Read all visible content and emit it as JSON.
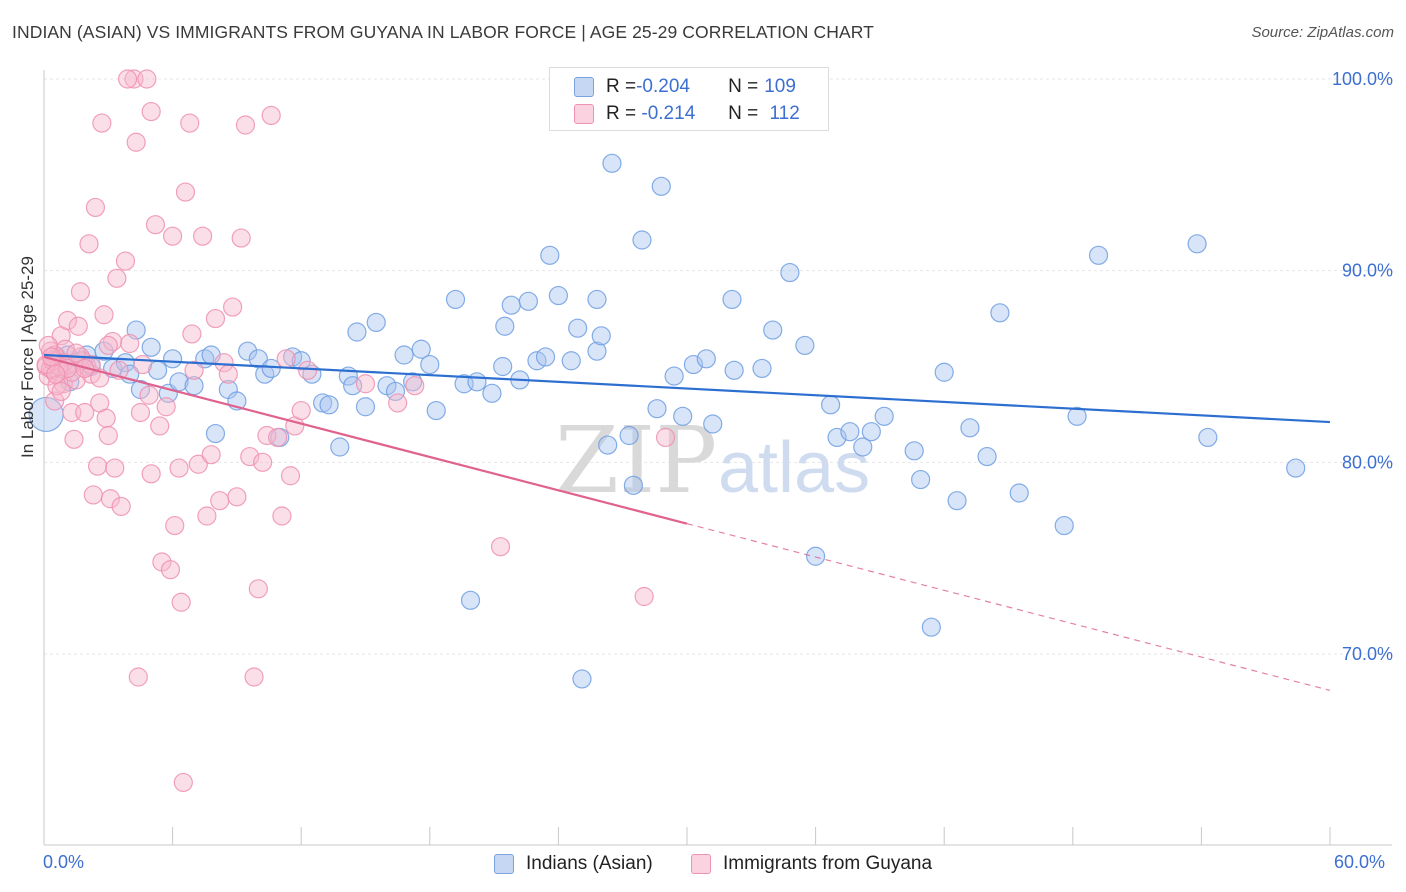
{
  "header": {
    "title": "INDIAN (ASIAN) VS IMMIGRANTS FROM GUYANA IN LABOR FORCE | AGE 25-29 CORRELATION CHART",
    "source": "Source: ZipAtlas.com"
  },
  "watermark": {
    "zip": "ZIP",
    "atlas": "atlas"
  },
  "legend": {
    "rows": [
      {
        "r_label": "R = ",
        "r_value": "-0.204",
        "n_label": "N = ",
        "n_value": "109",
        "color": "#a8c4ef",
        "border": "#7aa3e0"
      },
      {
        "r_label": "R = ",
        "r_value": " -0.214",
        "n_label": "N = ",
        "n_value": " 112",
        "color": "#f7b9cc",
        "border": "#ee93b2"
      }
    ]
  },
  "chart_data": {
    "type": "scatter",
    "title": "INDIAN (ASIAN) VS IMMIGRANTS FROM GUYANA IN LABOR FORCE | AGE 25-29 CORRELATION CHART",
    "xlabel": "",
    "ylabel": "In Labor Force | Age 25-29",
    "xlim": [
      0,
      60
    ],
    "ylim": [
      62,
      101
    ],
    "x_tick_labels": [
      "0.0%",
      "60.0%"
    ],
    "y_ticks": [
      70,
      80,
      90,
      100
    ],
    "y_tick_labels": [
      "70.0%",
      "80.0%",
      "90.0%",
      "100.0%"
    ],
    "grid": true,
    "legend_placement": "bottom",
    "series": [
      {
        "name": "Indians (Asian)",
        "color": "#6f9fe2",
        "fill": "#a8c4ef",
        "trend": {
          "x0": 0,
          "y0": 85.6,
          "x1": 60,
          "y1": 82.1,
          "style": "solid",
          "line_color": "#2c6fd0"
        },
        "points": [
          [
            0.1,
            82.5
          ],
          [
            0.6,
            85.5
          ],
          [
            0.8,
            85.0
          ],
          [
            1.1,
            85.6
          ],
          [
            1.4,
            85.2
          ],
          [
            1.7,
            85.3
          ],
          [
            2.0,
            85.6
          ],
          [
            2.2,
            85.0
          ],
          [
            2.8,
            85.8
          ],
          [
            3.2,
            84.9
          ],
          [
            3.8,
            85.2
          ],
          [
            4.0,
            84.6
          ],
          [
            4.3,
            86.9
          ],
          [
            4.5,
            83.8
          ],
          [
            5.0,
            86.0
          ],
          [
            5.3,
            84.8
          ],
          [
            5.8,
            83.6
          ],
          [
            6.0,
            85.4
          ],
          [
            6.3,
            84.2
          ],
          [
            7.0,
            84.0
          ],
          [
            7.5,
            85.4
          ],
          [
            7.8,
            85.6
          ],
          [
            8.0,
            81.5
          ],
          [
            8.6,
            83.8
          ],
          [
            9.5,
            85.8
          ],
          [
            10.0,
            85.4
          ],
          [
            10.3,
            84.6
          ],
          [
            10.6,
            84.9
          ],
          [
            11.0,
            81.3
          ],
          [
            11.6,
            85.5
          ],
          [
            12.0,
            85.3
          ],
          [
            12.5,
            84.6
          ],
          [
            13.0,
            83.1
          ],
          [
            13.3,
            83.0
          ],
          [
            13.8,
            80.8
          ],
          [
            14.2,
            84.5
          ],
          [
            14.4,
            84.0
          ],
          [
            14.6,
            86.8
          ],
          [
            15.0,
            82.9
          ],
          [
            15.5,
            87.3
          ],
          [
            16.0,
            84.0
          ],
          [
            16.4,
            83.7
          ],
          [
            16.8,
            85.6
          ],
          [
            17.2,
            84.2
          ],
          [
            17.6,
            85.9
          ],
          [
            18.0,
            85.1
          ],
          [
            18.3,
            82.7
          ],
          [
            19.2,
            88.5
          ],
          [
            19.6,
            84.1
          ],
          [
            19.9,
            72.8
          ],
          [
            20.2,
            84.2
          ],
          [
            20.9,
            83.6
          ],
          [
            21.4,
            85.0
          ],
          [
            21.5,
            87.1
          ],
          [
            21.8,
            88.2
          ],
          [
            22.2,
            84.3
          ],
          [
            22.6,
            88.4
          ],
          [
            23.0,
            85.3
          ],
          [
            23.4,
            85.5
          ],
          [
            23.6,
            90.8
          ],
          [
            24.0,
            88.7
          ],
          [
            24.6,
            85.3
          ],
          [
            24.9,
            87.0
          ],
          [
            25.1,
            68.7
          ],
          [
            25.8,
            88.5
          ],
          [
            25.8,
            85.8
          ],
          [
            26.0,
            86.6
          ],
          [
            26.3,
            80.9
          ],
          [
            26.5,
            95.6
          ],
          [
            27.3,
            81.4
          ],
          [
            27.5,
            78.8
          ],
          [
            27.9,
            91.6
          ],
          [
            28.6,
            82.8
          ],
          [
            28.8,
            94.4
          ],
          [
            29.4,
            84.5
          ],
          [
            29.8,
            82.4
          ],
          [
            30.3,
            85.1
          ],
          [
            30.9,
            85.4
          ],
          [
            31.2,
            82.0
          ],
          [
            32.1,
            88.5
          ],
          [
            32.2,
            84.8
          ],
          [
            33.5,
            84.9
          ],
          [
            34.0,
            86.9
          ],
          [
            34.8,
            89.9
          ],
          [
            35.5,
            86.1
          ],
          [
            36.0,
            75.1
          ],
          [
            36.7,
            83.0
          ],
          [
            37.0,
            81.3
          ],
          [
            37.6,
            81.6
          ],
          [
            38.2,
            80.8
          ],
          [
            38.6,
            81.6
          ],
          [
            39.2,
            82.4
          ],
          [
            40.6,
            80.6
          ],
          [
            40.9,
            79.1
          ],
          [
            41.4,
            71.4
          ],
          [
            42.0,
            84.7
          ],
          [
            42.6,
            78.0
          ],
          [
            43.2,
            81.8
          ],
          [
            44.0,
            80.3
          ],
          [
            44.6,
            87.8
          ],
          [
            45.5,
            78.4
          ],
          [
            47.6,
            76.7
          ],
          [
            48.2,
            82.4
          ],
          [
            49.2,
            90.8
          ],
          [
            53.8,
            91.4
          ],
          [
            54.3,
            81.3
          ],
          [
            58.4,
            79.7
          ],
          [
            1.2,
            84.2
          ],
          [
            9.0,
            83.2
          ]
        ]
      },
      {
        "name": "Immigrants from Guyana",
        "color": "#ee8fb0",
        "fill": "#f7b9cc",
        "trend": {
          "x0": 0,
          "y0": 85.5,
          "x1": 30,
          "y1": 76.8,
          "style": "solid",
          "line_color": "#e0628e",
          "extension": {
            "x1": 60,
            "y1": 68.1,
            "style": "dashed"
          }
        },
        "points": [
          [
            0.1,
            85.0
          ],
          [
            0.2,
            84.5
          ],
          [
            0.3,
            85.8
          ],
          [
            0.4,
            84.8
          ],
          [
            0.5,
            83.2
          ],
          [
            0.6,
            85.4
          ],
          [
            0.7,
            84.7
          ],
          [
            0.8,
            86.6
          ],
          [
            0.9,
            84.1
          ],
          [
            1.0,
            85.9
          ],
          [
            1.1,
            87.4
          ],
          [
            1.2,
            85.1
          ],
          [
            1.3,
            82.6
          ],
          [
            1.4,
            81.2
          ],
          [
            1.5,
            84.3
          ],
          [
            1.6,
            87.1
          ],
          [
            1.7,
            88.9
          ],
          [
            1.8,
            85.3
          ],
          [
            1.9,
            82.6
          ],
          [
            2.0,
            85.0
          ],
          [
            2.1,
            91.4
          ],
          [
            2.2,
            84.6
          ],
          [
            2.3,
            78.3
          ],
          [
            2.4,
            93.3
          ],
          [
            2.5,
            79.8
          ],
          [
            2.6,
            83.1
          ],
          [
            2.7,
            97.7
          ],
          [
            2.8,
            87.7
          ],
          [
            2.9,
            82.3
          ],
          [
            3.0,
            81.4
          ],
          [
            3.1,
            78.1
          ],
          [
            3.2,
            86.3
          ],
          [
            3.3,
            79.7
          ],
          [
            3.4,
            89.6
          ],
          [
            3.5,
            84.8
          ],
          [
            3.6,
            77.7
          ],
          [
            3.8,
            90.5
          ],
          [
            4.0,
            86.2
          ],
          [
            4.2,
            100.0
          ],
          [
            4.3,
            96.7
          ],
          [
            4.4,
            68.8
          ],
          [
            4.5,
            82.6
          ],
          [
            4.6,
            85.1
          ],
          [
            4.8,
            100.0
          ],
          [
            4.9,
            83.5
          ],
          [
            5.0,
            79.4
          ],
          [
            5.2,
            92.4
          ],
          [
            5.4,
            81.9
          ],
          [
            5.5,
            74.8
          ],
          [
            5.7,
            82.9
          ],
          [
            5.9,
            74.4
          ],
          [
            6.0,
            91.8
          ],
          [
            6.1,
            76.7
          ],
          [
            6.3,
            79.7
          ],
          [
            6.4,
            72.7
          ],
          [
            6.5,
            63.3
          ],
          [
            6.6,
            94.1
          ],
          [
            6.8,
            97.7
          ],
          [
            6.9,
            86.7
          ],
          [
            7.0,
            84.8
          ],
          [
            7.2,
            79.9
          ],
          [
            7.4,
            91.8
          ],
          [
            7.6,
            77.2
          ],
          [
            7.8,
            80.4
          ],
          [
            8.0,
            87.5
          ],
          [
            8.2,
            78.0
          ],
          [
            8.4,
            85.2
          ],
          [
            8.6,
            84.6
          ],
          [
            8.8,
            88.1
          ],
          [
            9.0,
            78.2
          ],
          [
            9.2,
            91.7
          ],
          [
            9.4,
            97.6
          ],
          [
            9.6,
            80.3
          ],
          [
            9.8,
            68.8
          ],
          [
            10.0,
            73.4
          ],
          [
            10.2,
            80.0
          ],
          [
            10.4,
            81.4
          ],
          [
            10.6,
            98.1
          ],
          [
            10.9,
            81.3
          ],
          [
            11.1,
            77.2
          ],
          [
            11.3,
            85.4
          ],
          [
            11.5,
            79.3
          ],
          [
            11.7,
            81.9
          ],
          [
            12.0,
            82.7
          ],
          [
            12.3,
            84.8
          ],
          [
            15.0,
            84.1
          ],
          [
            16.5,
            83.1
          ],
          [
            17.3,
            84.0
          ],
          [
            21.3,
            75.6
          ],
          [
            28.0,
            73.0
          ],
          [
            29.0,
            81.3
          ],
          [
            0.3,
            84.9
          ],
          [
            0.5,
            85.6
          ],
          [
            0.9,
            85.2
          ],
          [
            1.3,
            84.7
          ],
          [
            1.7,
            85.5
          ],
          [
            2.2,
            85.1
          ],
          [
            0.4,
            85.3
          ],
          [
            0.7,
            85.0
          ],
          [
            1.1,
            84.9
          ],
          [
            1.5,
            85.7
          ],
          [
            2.6,
            84.4
          ],
          [
            3.0,
            86.1
          ],
          [
            0.2,
            86.1
          ],
          [
            0.6,
            84.0
          ],
          [
            0.8,
            83.7
          ],
          [
            1.9,
            84.9
          ],
          [
            3.9,
            100.0
          ],
          [
            5.0,
            98.3
          ],
          [
            0.1,
            85.1
          ],
          [
            0.35,
            85.5
          ],
          [
            0.55,
            84.6
          ]
        ]
      }
    ]
  }
}
